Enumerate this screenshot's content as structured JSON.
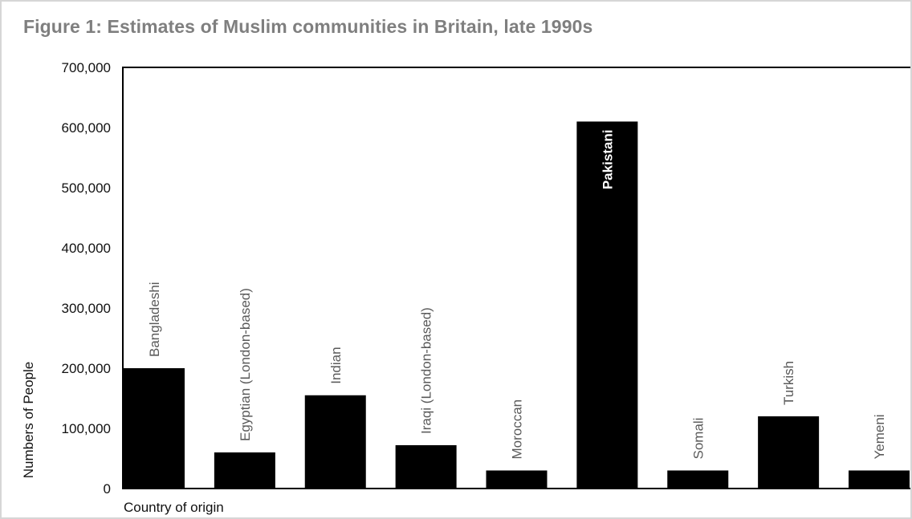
{
  "chart_data": {
    "type": "bar",
    "title": "Figure 1: Estimates of Muslim communities in Britain, late 1990s",
    "xlabel": "Country of origin",
    "ylabel": "Numbers of People",
    "categories": [
      "Bangladeshi",
      "Egyptian (London-based)",
      "Indian",
      "Iraqi (London-based)",
      "Moroccan",
      "Pakistani",
      "Somali",
      "Turkish",
      "Yemeni"
    ],
    "values": [
      200000,
      60000,
      155000,
      72000,
      30000,
      610000,
      30000,
      120000,
      30000
    ],
    "ylim": [
      0,
      700000
    ],
    "yticks": [
      0,
      100000,
      200000,
      300000,
      400000,
      500000,
      600000,
      700000
    ],
    "ytick_labels": [
      "0",
      "100,000",
      "200,000",
      "300,000",
      "400,000",
      "500,000",
      "600,000",
      "700,000"
    ],
    "label_inside_bar": "Pakistani",
    "bar_color": "#000000",
    "title_color": "#7f7f7f",
    "grid": false
  }
}
